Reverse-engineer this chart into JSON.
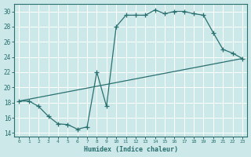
{
  "xlabel": "Humidex (Indice chaleur)",
  "background_color": "#cce8e8",
  "grid_color": "#ffffff",
  "line_color": "#2a7070",
  "xlim": [
    -0.5,
    23.5
  ],
  "ylim": [
    13.5,
    31.0
  ],
  "yticks": [
    14,
    16,
    18,
    20,
    22,
    24,
    26,
    28,
    30
  ],
  "xticks": [
    0,
    1,
    2,
    3,
    4,
    5,
    6,
    7,
    8,
    9,
    10,
    11,
    12,
    13,
    14,
    15,
    16,
    17,
    18,
    19,
    20,
    21,
    22,
    23
  ],
  "line1_x": [
    0,
    1,
    2,
    3,
    4,
    5,
    6,
    7,
    8,
    9,
    10,
    11,
    12,
    13,
    14,
    15,
    16,
    17,
    18,
    19,
    20,
    21,
    22,
    23
  ],
  "line1_y": [
    18.2,
    18.2,
    17.5,
    16.2,
    15.2,
    15.1,
    14.5,
    14.8,
    22.0,
    17.5,
    28.0,
    29.5,
    29.5,
    29.5,
    30.2,
    29.7,
    30.0,
    30.0,
    29.7,
    29.5,
    27.2,
    25.0,
    24.5,
    23.8
  ],
  "line2_x": [
    0,
    23
  ],
  "line2_y": [
    18.2,
    23.8
  ]
}
